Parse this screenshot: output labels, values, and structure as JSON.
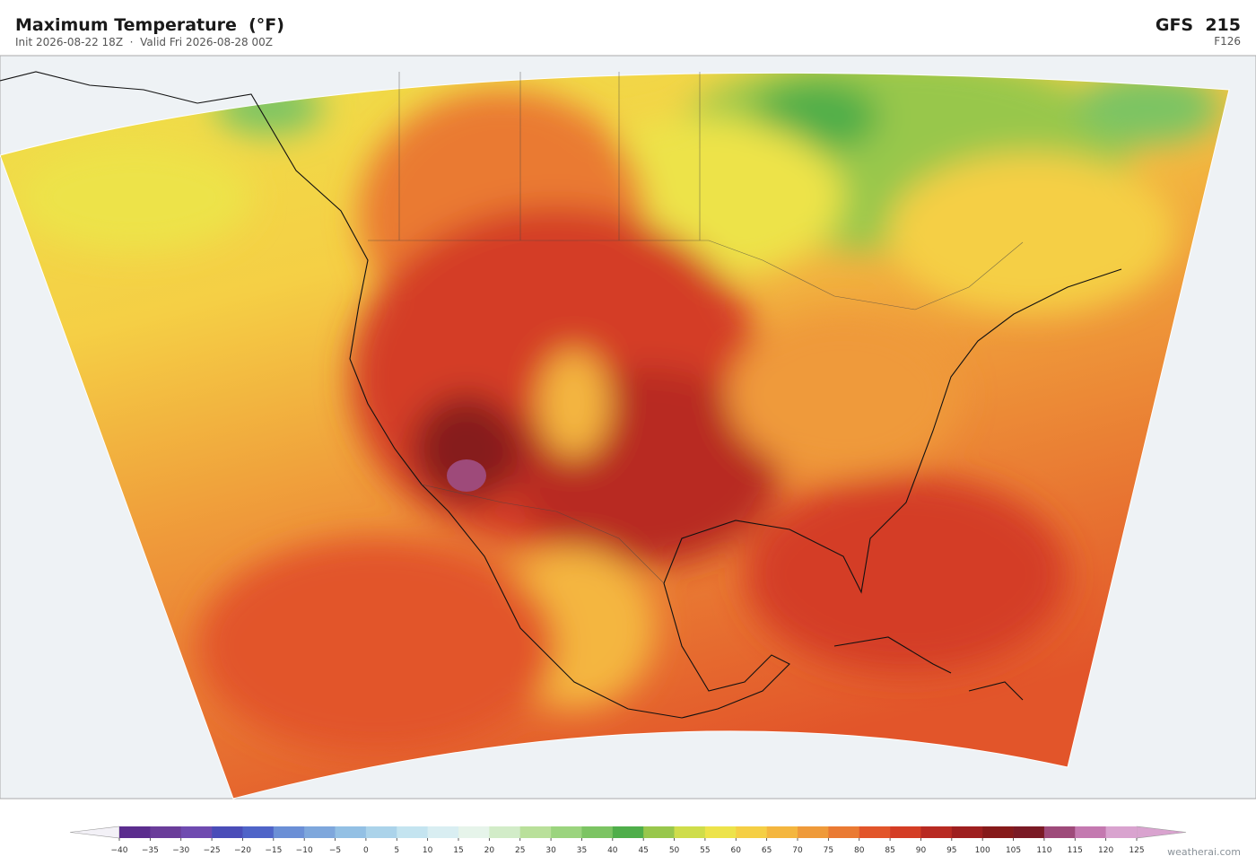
{
  "header": {
    "title": "Maximum Temperature  (°F)",
    "subtitle": "Init 2026-08-22 18Z  ·  Valid Fri 2026-08-28 00Z",
    "model": "GFS  215",
    "forecast_hour": "F126"
  },
  "colorbar": {
    "ticks": [
      {
        "value": -40,
        "label": "−40"
      },
      {
        "value": -35,
        "label": "−35"
      },
      {
        "value": -30,
        "label": "−30"
      },
      {
        "value": -25,
        "label": "−25"
      },
      {
        "value": -20,
        "label": "−20"
      },
      {
        "value": -15,
        "label": "−15"
      },
      {
        "value": -10,
        "label": "−10"
      },
      {
        "value": -5,
        "label": "−5"
      },
      0,
      5,
      10,
      15,
      20,
      25,
      30,
      35,
      40,
      45,
      50,
      55,
      60,
      65,
      70,
      75,
      80,
      85,
      90,
      95,
      100,
      105,
      110,
      115,
      120,
      125
    ],
    "colors": [
      "#5b2d8e",
      "#6a3d9a",
      "#6f4bb0",
      "#4a4db8",
      "#4f64c8",
      "#6b8fd6",
      "#7ea7dc",
      "#93c0e4",
      "#abd3ea",
      "#c4e4f0",
      "#d9eef2",
      "#e6f4ea",
      "#d2ecc8",
      "#b9e09a",
      "#9bd47e",
      "#7cc463",
      "#4fae4a",
      "#98c74c",
      "#cfdd4a",
      "#ede34a",
      "#f5cf45",
      "#f4b63f",
      "#ef9a3a",
      "#ea7a33",
      "#e2552a",
      "#d43d25",
      "#b82a22",
      "#9e1f1f",
      "#861a1a",
      "#7a1a25",
      "#9e4a7a",
      "#c479b0",
      "#d9a3cf"
    ],
    "under_color": "#f3f1f7",
    "over_color": "#d9a3cf"
  },
  "watermark": "weatherai.com"
}
